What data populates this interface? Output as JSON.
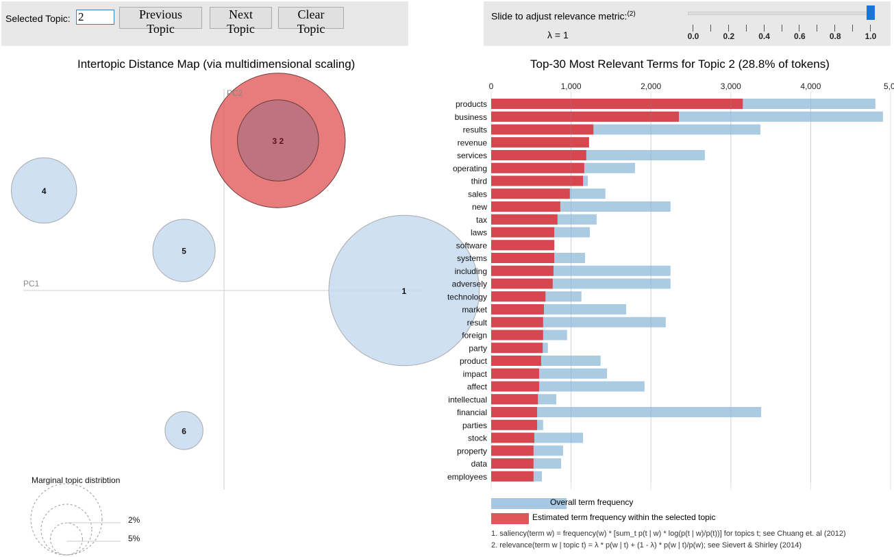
{
  "controls": {
    "selected_topic_label": "Selected Topic:",
    "selected_topic_value": "2",
    "previous_label": "Previous Topic",
    "next_label": "Next Topic",
    "clear_label": "Clear Topic"
  },
  "slider": {
    "label": "Slide to adjust relevance metric:",
    "label_sup": "(2)",
    "lambda_text": "λ = 1",
    "value": 1.0,
    "ticks": [
      "0.0",
      "0.2",
      "0.4",
      "0.6",
      "0.8",
      "1.0"
    ],
    "thumb_color": "#1976d2"
  },
  "chart_data": [
    {
      "type": "scatter",
      "title": "Intertopic Distance Map (via multidimensional scaling)",
      "xlabel": "PC1",
      "ylabel": "PC2",
      "grid": false,
      "selected_topic": 2,
      "topics": [
        {
          "id": "1",
          "x": 0.9,
          "y": 0.0,
          "size_pct": 36,
          "selected": false
        },
        {
          "id": "2",
          "x": 0.27,
          "y": 0.75,
          "size_pct": 28.8,
          "selected": true
        },
        {
          "id": "3",
          "x": 0.27,
          "y": 0.75,
          "size_pct": 10.5,
          "selected": false
        },
        {
          "id": "4",
          "x": -0.9,
          "y": 0.5,
          "size_pct": 6.8,
          "selected": false
        },
        {
          "id": "5",
          "x": -0.2,
          "y": 0.2,
          "size_pct": 6.2,
          "selected": false
        },
        {
          "id": "6",
          "x": -0.2,
          "y": -0.7,
          "size_pct": 2.3,
          "selected": false
        }
      ],
      "colors": {
        "default": "#c6dbef",
        "selected": "#e15759",
        "overlap": "#b07080"
      },
      "marginal_legend": {
        "title": "Marginal topic distribtion",
        "labels": [
          "2%",
          "5%"
        ]
      }
    },
    {
      "type": "bar",
      "title": "Top-30 Most Relevant Terms for Topic 2 (28.8% of tokens)",
      "xlim": [
        0,
        5000
      ],
      "x_ticks": [
        "0",
        "1,000",
        "2,000",
        "3,000",
        "4,000",
        "5,0"
      ],
      "grid": true,
      "categories": [
        "products",
        "business",
        "results",
        "revenue",
        "services",
        "operating",
        "third",
        "sales",
        "new",
        "tax",
        "laws",
        "software",
        "systems",
        "including",
        "adversely",
        "technology",
        "market",
        "result",
        "foreign",
        "party",
        "product",
        "impact",
        "affect",
        "intellectual",
        "financial",
        "parties",
        "stock",
        "property",
        "data",
        "employees"
      ],
      "series": [
        {
          "name": "Overall term frequency",
          "color": "#a6c8e2",
          "values": [
            4810,
            4905,
            3370,
            1225,
            2675,
            1800,
            1210,
            1430,
            2245,
            1320,
            1235,
            790,
            1175,
            2245,
            2245,
            1130,
            1690,
            2185,
            950,
            710,
            1370,
            1450,
            1920,
            815,
            3380,
            650,
            1150,
            900,
            875,
            635
          ]
        },
        {
          "name": "Estimated term frequency within the selected topic",
          "color": "#d6474f",
          "values": [
            3150,
            2350,
            1280,
            1225,
            1190,
            1165,
            1150,
            985,
            865,
            830,
            790,
            790,
            790,
            780,
            770,
            680,
            660,
            650,
            650,
            645,
            625,
            600,
            600,
            585,
            575,
            575,
            540,
            530,
            530,
            530
          ]
        }
      ],
      "legend": [
        "Overall term frequency",
        "Estimated term frequency within the selected topic"
      ],
      "legend_position": "bottom-left"
    }
  ],
  "footnotes": [
    "1. saliency(term w) = frequency(w) * [sum_t p(t | w) * log(p(t | w)/p(t))] for topics t; see Chuang et. al (2012)",
    "2. relevance(term w | topic t) = λ * p(w | t) + (1 - λ) * p(w | t)/p(w); see Sievert & Shirley (2014)"
  ]
}
